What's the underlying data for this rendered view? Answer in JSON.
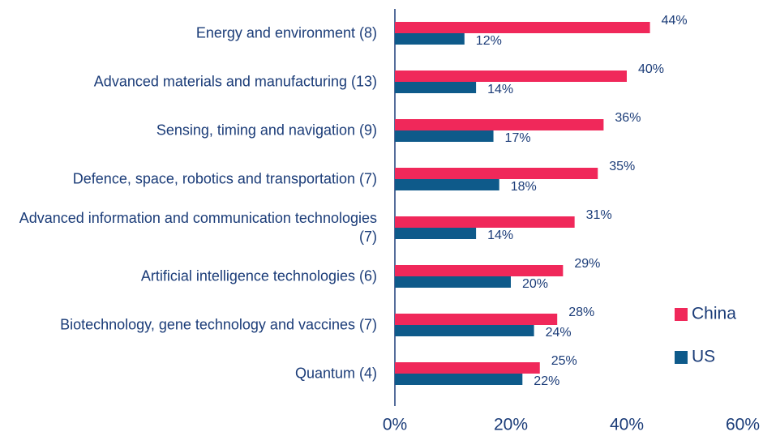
{
  "chart_data": {
    "type": "bar",
    "orientation": "horizontal",
    "categories": [
      "Energy and environment (8)",
      "Advanced materials and manufacturing (13)",
      "Sensing, timing and navigation (9)",
      "Defence, space, robotics and transportation (7)",
      "Advanced information and communication technologies (7)",
      "Artificial intelligence technologies (6)",
      "Biotechnology, gene technology and vaccines (7)",
      "Quantum (4)"
    ],
    "series": [
      {
        "name": "China",
        "color": "#f0285a",
        "values": [
          44,
          40,
          36,
          35,
          31,
          29,
          28,
          25
        ],
        "value_labels": [
          "44%",
          "40%",
          "36%",
          "35%",
          "31%",
          "29%",
          "28%",
          "25%"
        ]
      },
      {
        "name": "US",
        "color": "#0e5a8a",
        "values": [
          12,
          14,
          17,
          18,
          14,
          20,
          24,
          22
        ],
        "value_labels": [
          "12%",
          "14%",
          "17%",
          "18%",
          "14%",
          "20%",
          "24%",
          "22%"
        ]
      }
    ],
    "xlim": [
      0,
      60
    ],
    "xticks": [
      {
        "value": 0,
        "label": "0%"
      },
      {
        "value": 20,
        "label": "20%"
      },
      {
        "value": 40,
        "label": "40%"
      },
      {
        "value": 60,
        "label": "60%"
      }
    ],
    "legend": "right"
  }
}
